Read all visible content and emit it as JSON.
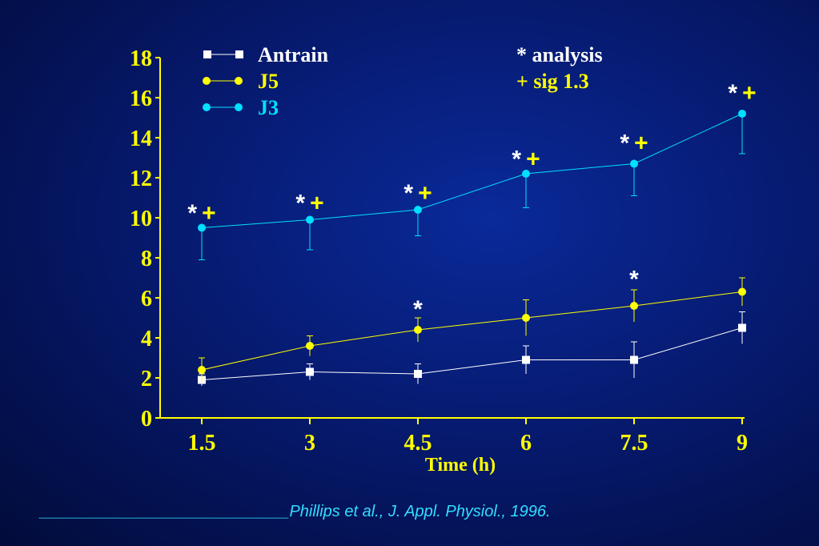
{
  "colors": {
    "axis": "#ffff00",
    "series_A": "#ffffff",
    "series_B": "#ffff00",
    "series_C": "#00e0ff",
    "marker_text": "#ffffff"
  },
  "legend": {
    "entries": [
      {
        "label": "Antrain",
        "color": "#ffffff",
        "marker": "square"
      },
      {
        "label": "J5",
        "color": "#ffff00",
        "marker": "circle"
      },
      {
        "label": "J3",
        "color": "#00e0ff",
        "marker": "circle"
      }
    ],
    "notes": [
      {
        "label": "* analysis",
        "color": "#ffffff"
      },
      {
        "label": "+ sig 1.3",
        "color": "#ffff00"
      }
    ]
  },
  "chart_data": {
    "type": "line",
    "title": "",
    "xlabel": "Time (h)",
    "ylabel": "",
    "x": [
      1.5,
      3,
      4.5,
      6,
      7.5,
      9
    ],
    "x_tick_labels": [
      "1.5",
      "3",
      "4.5",
      "6",
      "7.5",
      "9"
    ],
    "y_ticks": [
      0,
      2,
      4,
      6,
      8,
      10,
      12,
      14,
      16,
      18
    ],
    "y_tick_labels": [
      "0",
      "2",
      "4",
      "6",
      "8",
      "10",
      "12",
      "14",
      "16",
      "18"
    ],
    "ylim": [
      0,
      18
    ],
    "series": [
      {
        "name": "Antrain",
        "marker": "square",
        "values": [
          1.9,
          2.3,
          2.2,
          2.9,
          2.9,
          4.5
        ],
        "error": [
          0.3,
          0.4,
          0.5,
          0.7,
          0.9,
          0.8
        ]
      },
      {
        "name": "J5",
        "marker": "circle",
        "values": [
          2.4,
          3.6,
          4.4,
          5.0,
          5.6,
          6.3
        ],
        "error": [
          0.6,
          0.5,
          0.6,
          0.9,
          0.8,
          0.7
        ]
      },
      {
        "name": "J3",
        "marker": "circle",
        "values": [
          9.5,
          9.9,
          10.4,
          12.2,
          12.7,
          15.2
        ],
        "error": [
          1.6,
          1.5,
          1.3,
          1.7,
          1.6,
          2.0
        ]
      }
    ],
    "annotations": [
      {
        "x": 1.5,
        "y": 10.4,
        "text": "*+"
      },
      {
        "x": 3,
        "y": 10.9,
        "text": "*+"
      },
      {
        "x": 4.5,
        "y": 11.4,
        "text": "*+"
      },
      {
        "x": 6,
        "y": 13.1,
        "text": "*+"
      },
      {
        "x": 7.5,
        "y": 13.9,
        "text": "*+"
      },
      {
        "x": 9,
        "y": 16.4,
        "text": "*+"
      },
      {
        "x": 4.5,
        "y": 5.6,
        "text": "*"
      },
      {
        "x": 7.5,
        "y": 7.1,
        "text": "*"
      }
    ],
    "grid": false
  },
  "citation": "____________________________Phillips et al., J. Appl. Physiol., 1996."
}
